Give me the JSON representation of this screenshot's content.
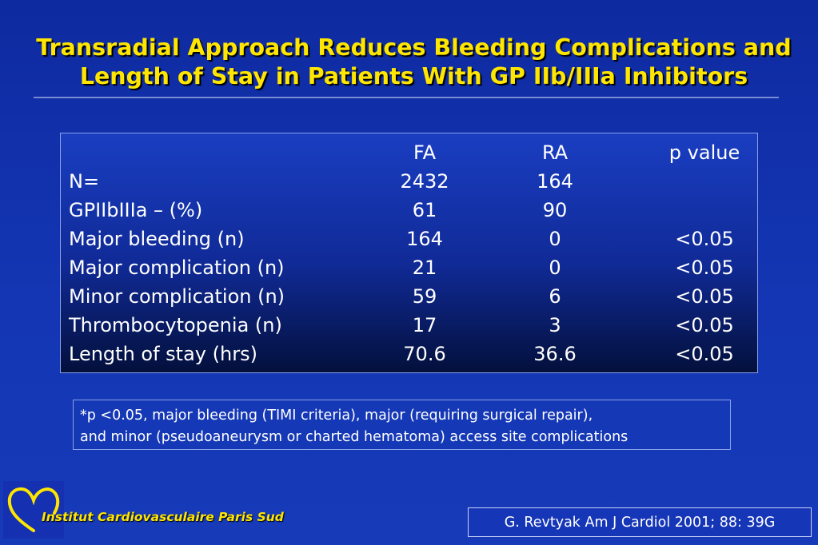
{
  "title": {
    "line1": "Transradial Approach Reduces Bleeding Complications and",
    "line2": "Length of Stay in Patients With GP IIb/IIIa Inhibitors"
  },
  "table": {
    "headers": {
      "label": "",
      "fa": "FA",
      "ra": "RA",
      "p": "p value"
    },
    "rows": [
      {
        "label": "N=",
        "fa": "2432",
        "ra": "164",
        "p": ""
      },
      {
        "label": "GPIIbIIIa – (%)",
        "fa": "61",
        "ra": "90",
        "p": ""
      },
      {
        "label": "Major bleeding (n)",
        "fa": "164",
        "ra": "0",
        "p": "<0.05"
      },
      {
        "label": "Major complication (n)",
        "fa": "21",
        "ra": "0",
        "p": "<0.05"
      },
      {
        "label": "Minor complication (n)",
        "fa": "59",
        "ra": "6",
        "p": "<0.05"
      },
      {
        "label": "Thrombocytopenia (n)",
        "fa": "17",
        "ra": "3",
        "p": "<0.05"
      },
      {
        "label": "Length of stay (hrs)",
        "fa": "70.6",
        "ra": "36.6",
        "p": "<0.05"
      }
    ]
  },
  "footnote": {
    "line1": "*p <0.05, major bleeding (TIMI criteria), major (requiring surgical repair),",
    "line2": "and minor (pseudoaneurysm or charted hematoma) access site complications"
  },
  "institute": "Institut Cardiovasculaire Paris Sud",
  "citation": "G. Revtyak Am J Cardiol 2001; 88: 39G",
  "colors": {
    "title": "#ffe600",
    "background": "#1436b4",
    "text": "#ffffff"
  },
  "logo_icon": "heart-outline-icon"
}
